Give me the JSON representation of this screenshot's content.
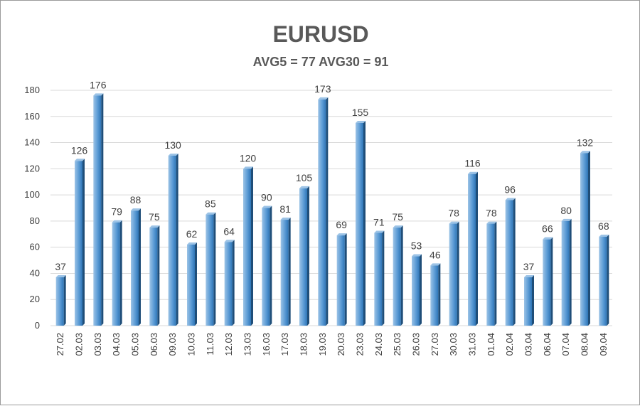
{
  "chart_data": {
    "type": "bar",
    "title": "EURUSD",
    "subtitle": "AVG5 = 77 AVG30 = 91",
    "xlabel": "",
    "ylabel": "",
    "ylim": [
      0,
      180
    ],
    "yticks": [
      0,
      20,
      40,
      60,
      80,
      100,
      120,
      140,
      160,
      180
    ],
    "grid": true,
    "legend": "none",
    "categories": [
      "27.02",
      "02.03",
      "03.03",
      "04.03",
      "05.03",
      "06.03",
      "09.03",
      "10.03",
      "11.03",
      "12.03",
      "13.03",
      "16.03",
      "17.03",
      "18.03",
      "19.03",
      "20.03",
      "23.03",
      "24.03",
      "25.03",
      "26.03",
      "27.03",
      "30.03",
      "31.03",
      "01.04",
      "02.04",
      "03.04",
      "06.04",
      "07.04",
      "08.04",
      "09.04"
    ],
    "values": [
      37,
      126,
      176,
      79,
      88,
      75,
      130,
      62,
      85,
      64,
      120,
      90,
      81,
      105,
      173,
      69,
      155,
      71,
      75,
      53,
      46,
      78,
      116,
      78,
      96,
      37,
      66,
      80,
      132,
      68
    ],
    "colors": {
      "bar_light": "#9cc3e6",
      "bar_mid": "#5b9bd5",
      "bar_dark": "#2e75b6",
      "bar_side": "#1f4e79",
      "grid": "#d9d9d9",
      "text": "#404040",
      "title": "#595959"
    }
  }
}
